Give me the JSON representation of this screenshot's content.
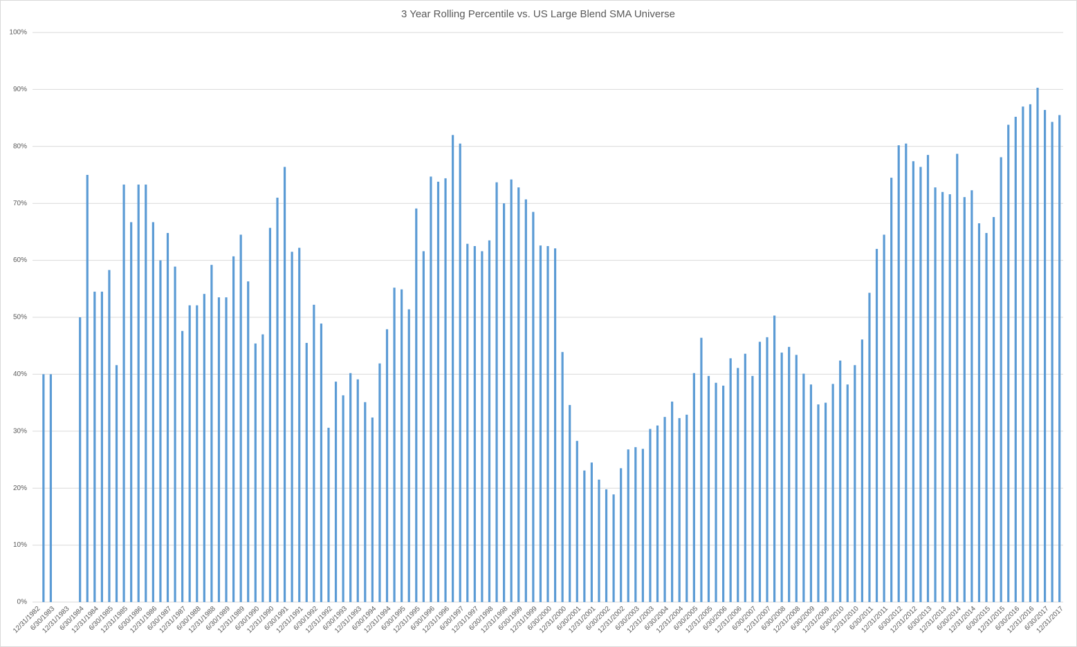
{
  "chart_data": {
    "type": "bar",
    "title": "3 Year Rolling Percentile vs. US Large Blend SMA Universe",
    "categories": [
      "12/31/1982",
      null,
      "6/30/1983",
      null,
      "12/31/1983",
      null,
      "6/30/1984",
      null,
      "12/31/1984",
      null,
      "6/30/1985",
      null,
      "12/31/1985",
      null,
      "6/30/1986",
      null,
      "12/31/1986",
      null,
      "6/30/1987",
      null,
      "12/31/1987",
      null,
      "6/30/1988",
      null,
      "12/31/1988",
      null,
      "6/30/1989",
      null,
      "12/31/1989",
      null,
      "6/30/1990",
      null,
      "12/31/1990",
      null,
      "6/30/1991",
      null,
      "12/31/1991",
      null,
      "6/30/1992",
      null,
      "12/31/1992",
      null,
      "6/30/1993",
      null,
      "12/31/1993",
      null,
      "6/30/1994",
      null,
      "12/31/1994",
      null,
      "6/30/1995",
      null,
      "12/31/1995",
      null,
      "6/30/1996",
      null,
      "12/31/1996",
      null,
      "6/30/1997",
      null,
      "12/31/1997",
      null,
      "6/30/1998",
      null,
      "12/31/1998",
      null,
      "6/30/1999",
      null,
      "12/31/1999",
      null,
      "6/30/2000",
      null,
      "12/31/2000",
      null,
      "6/30/2001",
      null,
      "12/31/2001",
      null,
      "6/30/2002",
      null,
      "12/31/2002",
      null,
      "6/30/2003",
      null,
      "12/31/2003",
      null,
      "6/30/2004",
      null,
      "12/31/2004",
      null,
      "6/30/2005",
      null,
      "12/31/2005",
      null,
      "6/30/2006",
      null,
      "12/31/2006",
      null,
      "6/30/2007",
      null,
      "12/31/2007",
      null,
      "6/30/2008",
      null,
      "12/31/2008",
      null,
      "6/30/2009",
      null,
      "12/31/2009",
      null,
      "6/30/2010",
      null,
      "12/31/2010",
      null,
      "6/30/2011",
      null,
      "12/31/2011",
      null,
      "6/30/2012",
      null,
      "12/31/2012",
      null,
      "6/30/2013",
      null,
      "12/31/2013",
      null,
      "6/30/2014",
      null,
      "12/31/2014",
      null,
      "6/30/2015",
      null,
      "12/31/2015",
      null,
      "6/30/2016",
      null,
      "12/31/2016",
      null,
      "6/30/2017",
      null,
      "12/31/2017"
    ],
    "values": [
      null,
      40,
      40,
      null,
      null,
      null,
      50,
      75,
      54.5,
      54.5,
      58.3,
      41.6,
      73.3,
      66.7,
      73.3,
      73.3,
      66.7,
      60,
      64.8,
      58.9,
      47.6,
      52.1,
      52.1,
      54.1,
      59.2,
      53.5,
      53.5,
      60.7,
      64.5,
      56.3,
      45.4,
      47,
      65.7,
      71,
      76.4,
      61.5,
      62.2,
      45.5,
      52.2,
      48.9,
      30.6,
      38.7,
      36.3,
      40.2,
      39.1,
      35.1,
      32.4,
      41.9,
      47.9,
      55.2,
      54.9,
      51.4,
      69.1,
      61.6,
      74.7,
      73.8,
      74.4,
      82,
      80.5,
      62.9,
      62.5,
      61.6,
      63.5,
      73.7,
      70,
      74.2,
      72.8,
      70.7,
      68.5,
      62.6,
      62.5,
      62.1,
      43.9,
      34.6,
      28.3,
      23.1,
      24.5,
      21.5,
      19.8,
      18.9,
      23.5,
      26.8,
      27.2,
      26.9,
      30.4,
      31,
      32.5,
      35.2,
      32.3,
      32.9,
      40.2,
      46.4,
      39.7,
      38.5,
      38,
      42.8,
      41.1,
      43.6,
      39.7,
      45.7,
      46.5,
      50.3,
      43.8,
      44.8,
      43.4,
      40.1,
      38.2,
      34.7,
      35,
      38.3,
      42.4,
      38.2,
      41.6,
      46.1,
      54.3,
      62,
      64.5,
      74.5,
      80.2,
      80.5,
      77.4,
      76.4,
      78.5,
      72.8,
      72,
      71.6,
      78.7,
      71.1,
      72.3,
      66.5,
      64.8,
      67.6,
      78.1,
      83.8,
      85.2,
      87,
      87.4,
      90.3,
      86.4,
      84.3,
      85.5
    ],
    "color": "#5b9bd5",
    "ylim": [
      0,
      100
    ],
    "yticks": [
      {
        "value": 0,
        "label": "0%"
      },
      {
        "value": 10,
        "label": "10%"
      },
      {
        "value": 20,
        "label": "20%"
      },
      {
        "value": 30,
        "label": "30%"
      },
      {
        "value": 40,
        "label": "40%"
      },
      {
        "value": 50,
        "label": "50%"
      },
      {
        "value": 60,
        "label": "60%"
      },
      {
        "value": 70,
        "label": "70%"
      },
      {
        "value": 80,
        "label": "80%"
      },
      {
        "value": 90,
        "label": "90%"
      },
      {
        "value": 100,
        "label": "100%"
      }
    ],
    "grid": true
  }
}
